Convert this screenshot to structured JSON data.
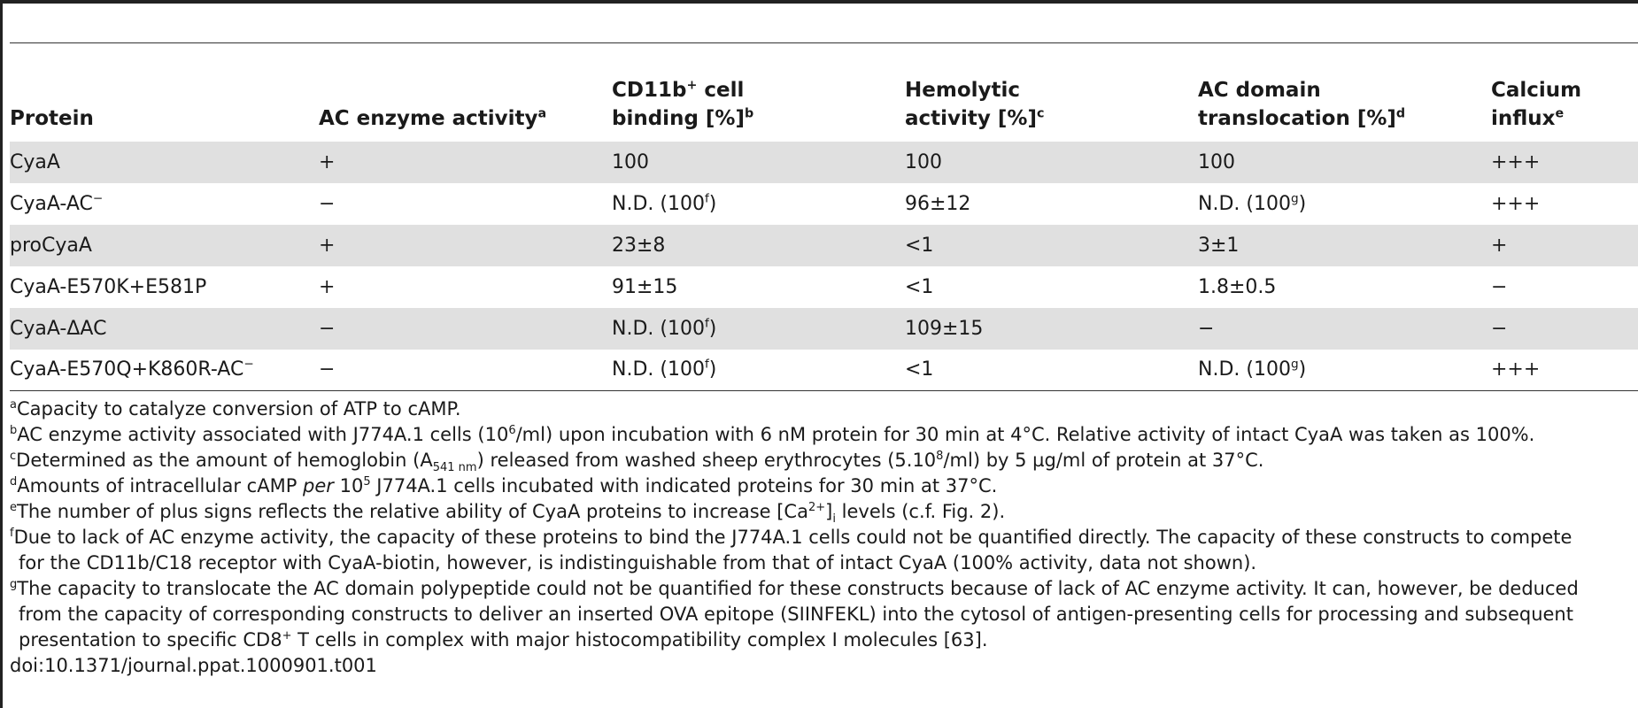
{
  "table": {
    "headers": [
      {
        "main": "Protein",
        "sup": ""
      },
      {
        "main": "AC enzyme activity",
        "sup": "a"
      },
      {
        "line1_pre": "CD11b",
        "line1_sup": "+",
        "line1_post": " cell",
        "line2": "binding [%]",
        "sup": "b"
      },
      {
        "line1": "Hemolytic",
        "line2": "activity [%]",
        "sup": "c"
      },
      {
        "line1": "AC domain",
        "line2": "translocation [%]",
        "sup": "d"
      },
      {
        "line1": "Calcium",
        "line2": "influx",
        "sup": "e"
      }
    ],
    "rows": [
      {
        "protein": "CyaA",
        "protein_sup": "",
        "ac": "+",
        "cd11b": "100",
        "cd11b_sup": "",
        "cd11b_post": "",
        "hemo": "100",
        "trans": "100",
        "trans_sup": "",
        "trans_post": "",
        "ca": "+++"
      },
      {
        "protein": "CyaA-AC",
        "protein_sup": "−",
        "ac": "−",
        "cd11b": "N.D. (100",
        "cd11b_sup": "f",
        "cd11b_post": ")",
        "hemo": "96±12",
        "trans": "N.D. (100",
        "trans_sup": "g",
        "trans_post": ")",
        "ca": "+++"
      },
      {
        "protein": "proCyaA",
        "protein_sup": "",
        "ac": "+",
        "cd11b": "23±8",
        "cd11b_sup": "",
        "cd11b_post": "",
        "hemo": "<1",
        "trans": "3±1",
        "trans_sup": "",
        "trans_post": "",
        "ca": "+"
      },
      {
        "protein": "CyaA-E570K+E581P",
        "protein_sup": "",
        "ac": "+",
        "cd11b": "91±15",
        "cd11b_sup": "",
        "cd11b_post": "",
        "hemo": "<1",
        "trans": "1.8±0.5",
        "trans_sup": "",
        "trans_post": "",
        "ca": "−"
      },
      {
        "protein": "CyaA-ΔAC",
        "protein_sup": "",
        "ac": "−",
        "cd11b": "N.D. (100",
        "cd11b_sup": "f",
        "cd11b_post": ")",
        "hemo": "109±15",
        "trans": "−",
        "trans_sup": "",
        "trans_post": "",
        "ca": "−"
      },
      {
        "protein": "CyaA-E570Q+K860R-AC",
        "protein_sup": "−",
        "ac": "−",
        "cd11b": "N.D. (100",
        "cd11b_sup": "f",
        "cd11b_post": ")",
        "hemo": "<1",
        "trans": "N.D. (100",
        "trans_sup": "g",
        "trans_post": ")",
        "ca": "+++"
      }
    ]
  },
  "footnotes": {
    "a": {
      "mark": "a",
      "text": "Capacity to catalyze conversion of ATP to cAMP."
    },
    "b": {
      "mark": "b",
      "t1": "AC enzyme activity associated with J774A.1 cells (10",
      "sup": "6",
      "t2": "/ml) upon incubation with 6 nM protein for 30 min at 4°C. Relative activity of intact CyaA was taken as 100%."
    },
    "c": {
      "mark": "c",
      "t1": "Determined as the amount of hemoglobin (A",
      "sub": "541 nm",
      "t2": ") released from washed sheep erythrocytes (5.10",
      "sup": "8",
      "t3": "/ml) by 5 µg/ml of protein at 37°C."
    },
    "d": {
      "mark": "d",
      "t1": "Amounts of intracellular cAMP ",
      "em": "per",
      "t2": " 10",
      "sup": "5",
      "t3": " J774A.1 cells incubated with indicated proteins for 30 min at 37°C."
    },
    "e": {
      "mark": "e",
      "t1": "The number of plus signs reflects the relative ability of CyaA proteins to increase [Ca",
      "sup": "2+",
      "t2": "]",
      "sub": "i",
      "t3": " levels (c.f. Fig. 2)."
    },
    "f": {
      "mark": "f",
      "line1": "Due to lack of AC enzyme activity, the capacity of these proteins to bind the J774A.1 cells could not be quantified directly. The capacity of these constructs to compete",
      "line2": "for the CD11b/C18 receptor with CyaA-biotin, however, is indistinguishable from that of intact CyaA (100% activity, data not shown)."
    },
    "g": {
      "mark": "g",
      "line1": "The capacity to translocate the AC domain polypeptide could not be quantified for these constructs because of lack of AC enzyme activity. It can, however, be deduced",
      "line2": "from the capacity of corresponding constructs to deliver an inserted OVA epitope (SIINFEKL) into the cytosol of antigen-presenting cells for processing and subsequent",
      "line3_pre": "presentation to specific CD8",
      "line3_sup": "+",
      "line3_post": " T cells in complex with major histocompatibility complex I molecules [63]."
    }
  },
  "doi": "doi:10.1371/journal.ppat.1000901.t001"
}
